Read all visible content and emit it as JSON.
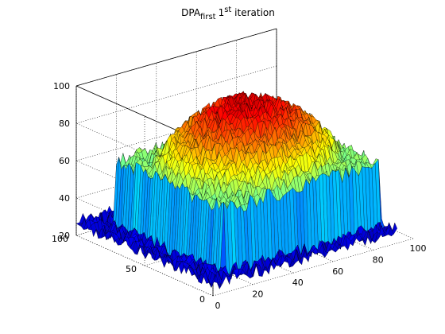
{
  "title": {
    "main": "DPA",
    "subscript": "first",
    "iteration_number": "1",
    "superscript": "st",
    "suffix": " iteration"
  },
  "chart_data": {
    "type": "surface",
    "title": "DPA_first 1^st iteration",
    "xlim": [
      0,
      100
    ],
    "ylim": [
      0,
      100
    ],
    "zlim": [
      20,
      100
    ],
    "xticks": [
      "0",
      "20",
      "40",
      "60",
      "80",
      "100"
    ],
    "yticks": [
      "0",
      "50",
      "100"
    ],
    "zticks": [
      "20",
      "40",
      "60",
      "80",
      "100"
    ],
    "colormap": "jet",
    "grid": true,
    "surface_description": {
      "baseline_level": 27,
      "plateau_x_range": [
        10,
        90
      ],
      "plateau_y_range": [
        8,
        88
      ],
      "plateau_edge_level": 60,
      "plateau_peak_level": 92,
      "noise_amplitude": 4
    }
  }
}
